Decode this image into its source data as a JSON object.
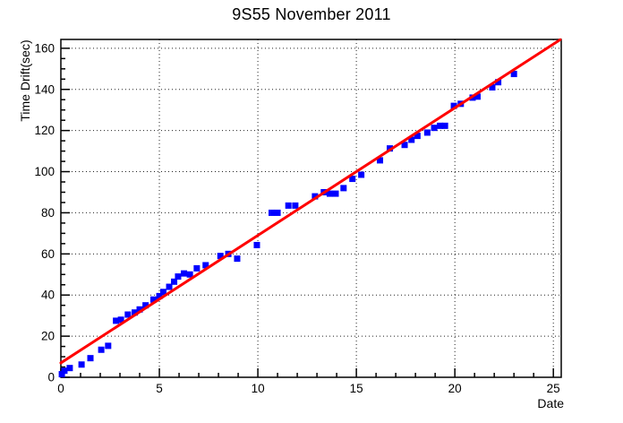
{
  "chart_data": {
    "type": "scatter",
    "title": "9S55 November 2011",
    "xlabel": "Date",
    "ylabel": "Time Drift(sec)",
    "xlim": [
      0,
      25.4
    ],
    "ylim": [
      0,
      164.3
    ],
    "x_major_ticks": [
      0,
      5,
      10,
      15,
      20,
      25
    ],
    "x_minor_step": 1,
    "y_major_ticks": [
      0,
      20,
      40,
      60,
      80,
      100,
      120,
      140,
      160
    ],
    "y_minor_step": 5,
    "grid": {
      "style": "dotted",
      "color": "#222222",
      "at": "major-ticks"
    },
    "frame_color": "#000000",
    "series": [
      {
        "name": "time-drift-measurements",
        "type": "scatter",
        "marker": "filled-square",
        "color": "#0000ff",
        "marker_size": 7,
        "points": [
          [
            0.05,
            1.5
          ],
          [
            0.18,
            3.2
          ],
          [
            0.45,
            4.5
          ],
          [
            1.05,
            6.2
          ],
          [
            1.5,
            9.3
          ],
          [
            2.05,
            13.4
          ],
          [
            2.4,
            15.3
          ],
          [
            2.8,
            27.5
          ],
          [
            3.05,
            28.0
          ],
          [
            3.4,
            30.5
          ],
          [
            3.75,
            31.5
          ],
          [
            4.0,
            33.0
          ],
          [
            4.3,
            35.0
          ],
          [
            4.7,
            37.8
          ],
          [
            5.0,
            39.5
          ],
          [
            5.2,
            41.5
          ],
          [
            5.5,
            44.0
          ],
          [
            5.75,
            46.5
          ],
          [
            5.95,
            49.0
          ],
          [
            6.25,
            50.5
          ],
          [
            6.55,
            50.0
          ],
          [
            6.9,
            53.0
          ],
          [
            7.35,
            54.5
          ],
          [
            8.1,
            59.0
          ],
          [
            8.5,
            60.0
          ],
          [
            8.95,
            57.7
          ],
          [
            9.95,
            64.3
          ],
          [
            10.7,
            80.0
          ],
          [
            11.0,
            80.0
          ],
          [
            11.55,
            83.5
          ],
          [
            11.9,
            83.5
          ],
          [
            12.9,
            88.0
          ],
          [
            13.35,
            90.0
          ],
          [
            13.65,
            89.3
          ],
          [
            13.95,
            89.3
          ],
          [
            14.35,
            92.0
          ],
          [
            14.8,
            96.5
          ],
          [
            15.25,
            98.5
          ],
          [
            16.2,
            105.5
          ],
          [
            16.7,
            111.3
          ],
          [
            17.45,
            113.0
          ],
          [
            17.8,
            115.5
          ],
          [
            18.1,
            117.4
          ],
          [
            18.6,
            119.0
          ],
          [
            18.95,
            121.3
          ],
          [
            19.25,
            122.3
          ],
          [
            19.5,
            122.3
          ],
          [
            19.95,
            132.0
          ],
          [
            20.3,
            133.0
          ],
          [
            20.9,
            136.0
          ],
          [
            21.15,
            136.5
          ],
          [
            21.9,
            141.0
          ],
          [
            22.2,
            143.5
          ],
          [
            23.0,
            147.5
          ]
        ]
      },
      {
        "name": "linear-fit",
        "type": "line",
        "color": "#ff0000",
        "width": 3,
        "x": [
          0,
          25.35
        ],
        "y": [
          7.0,
          164.2
        ]
      }
    ]
  }
}
